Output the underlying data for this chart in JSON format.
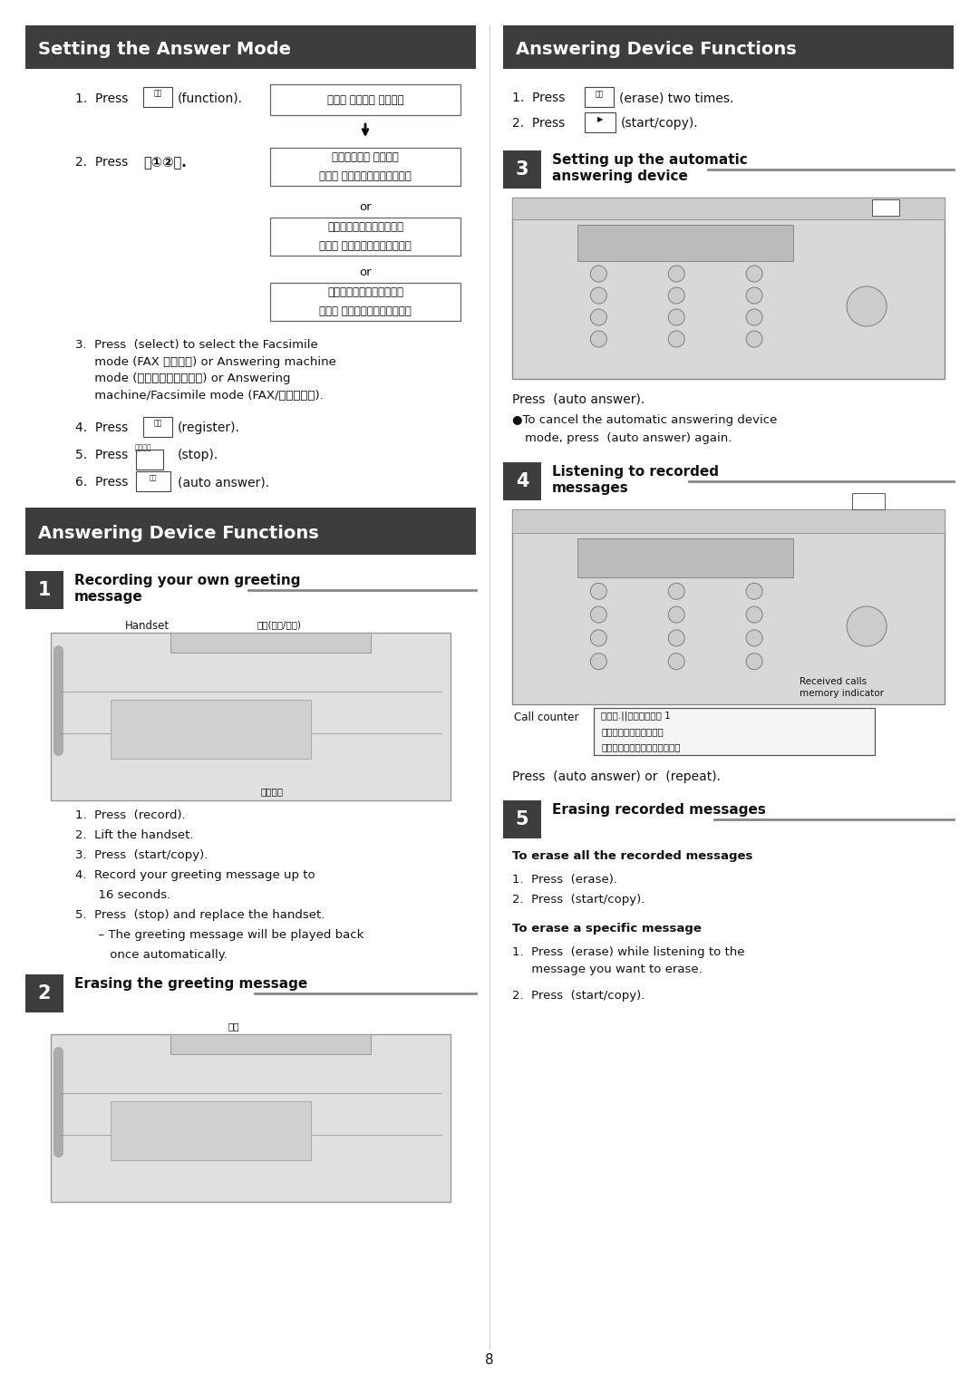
{
  "page_bg": "#ffffff",
  "header_bg": "#3d3d3d",
  "header_text_color": "#ffffff",
  "header_left": "Setting the Answer Mode",
  "header_right": "Answering Device Functions",
  "section_bg": "#3d3d3d",
  "section_text_color": "#ffffff",
  "body_text_color": "#111111",
  "gray_line_color": "#888888",
  "page_number": "8",
  "box_bg": "#ffffff",
  "box_border": "#666666",
  "device_fill": "#d8d8d8",
  "device_edge": "#888888"
}
